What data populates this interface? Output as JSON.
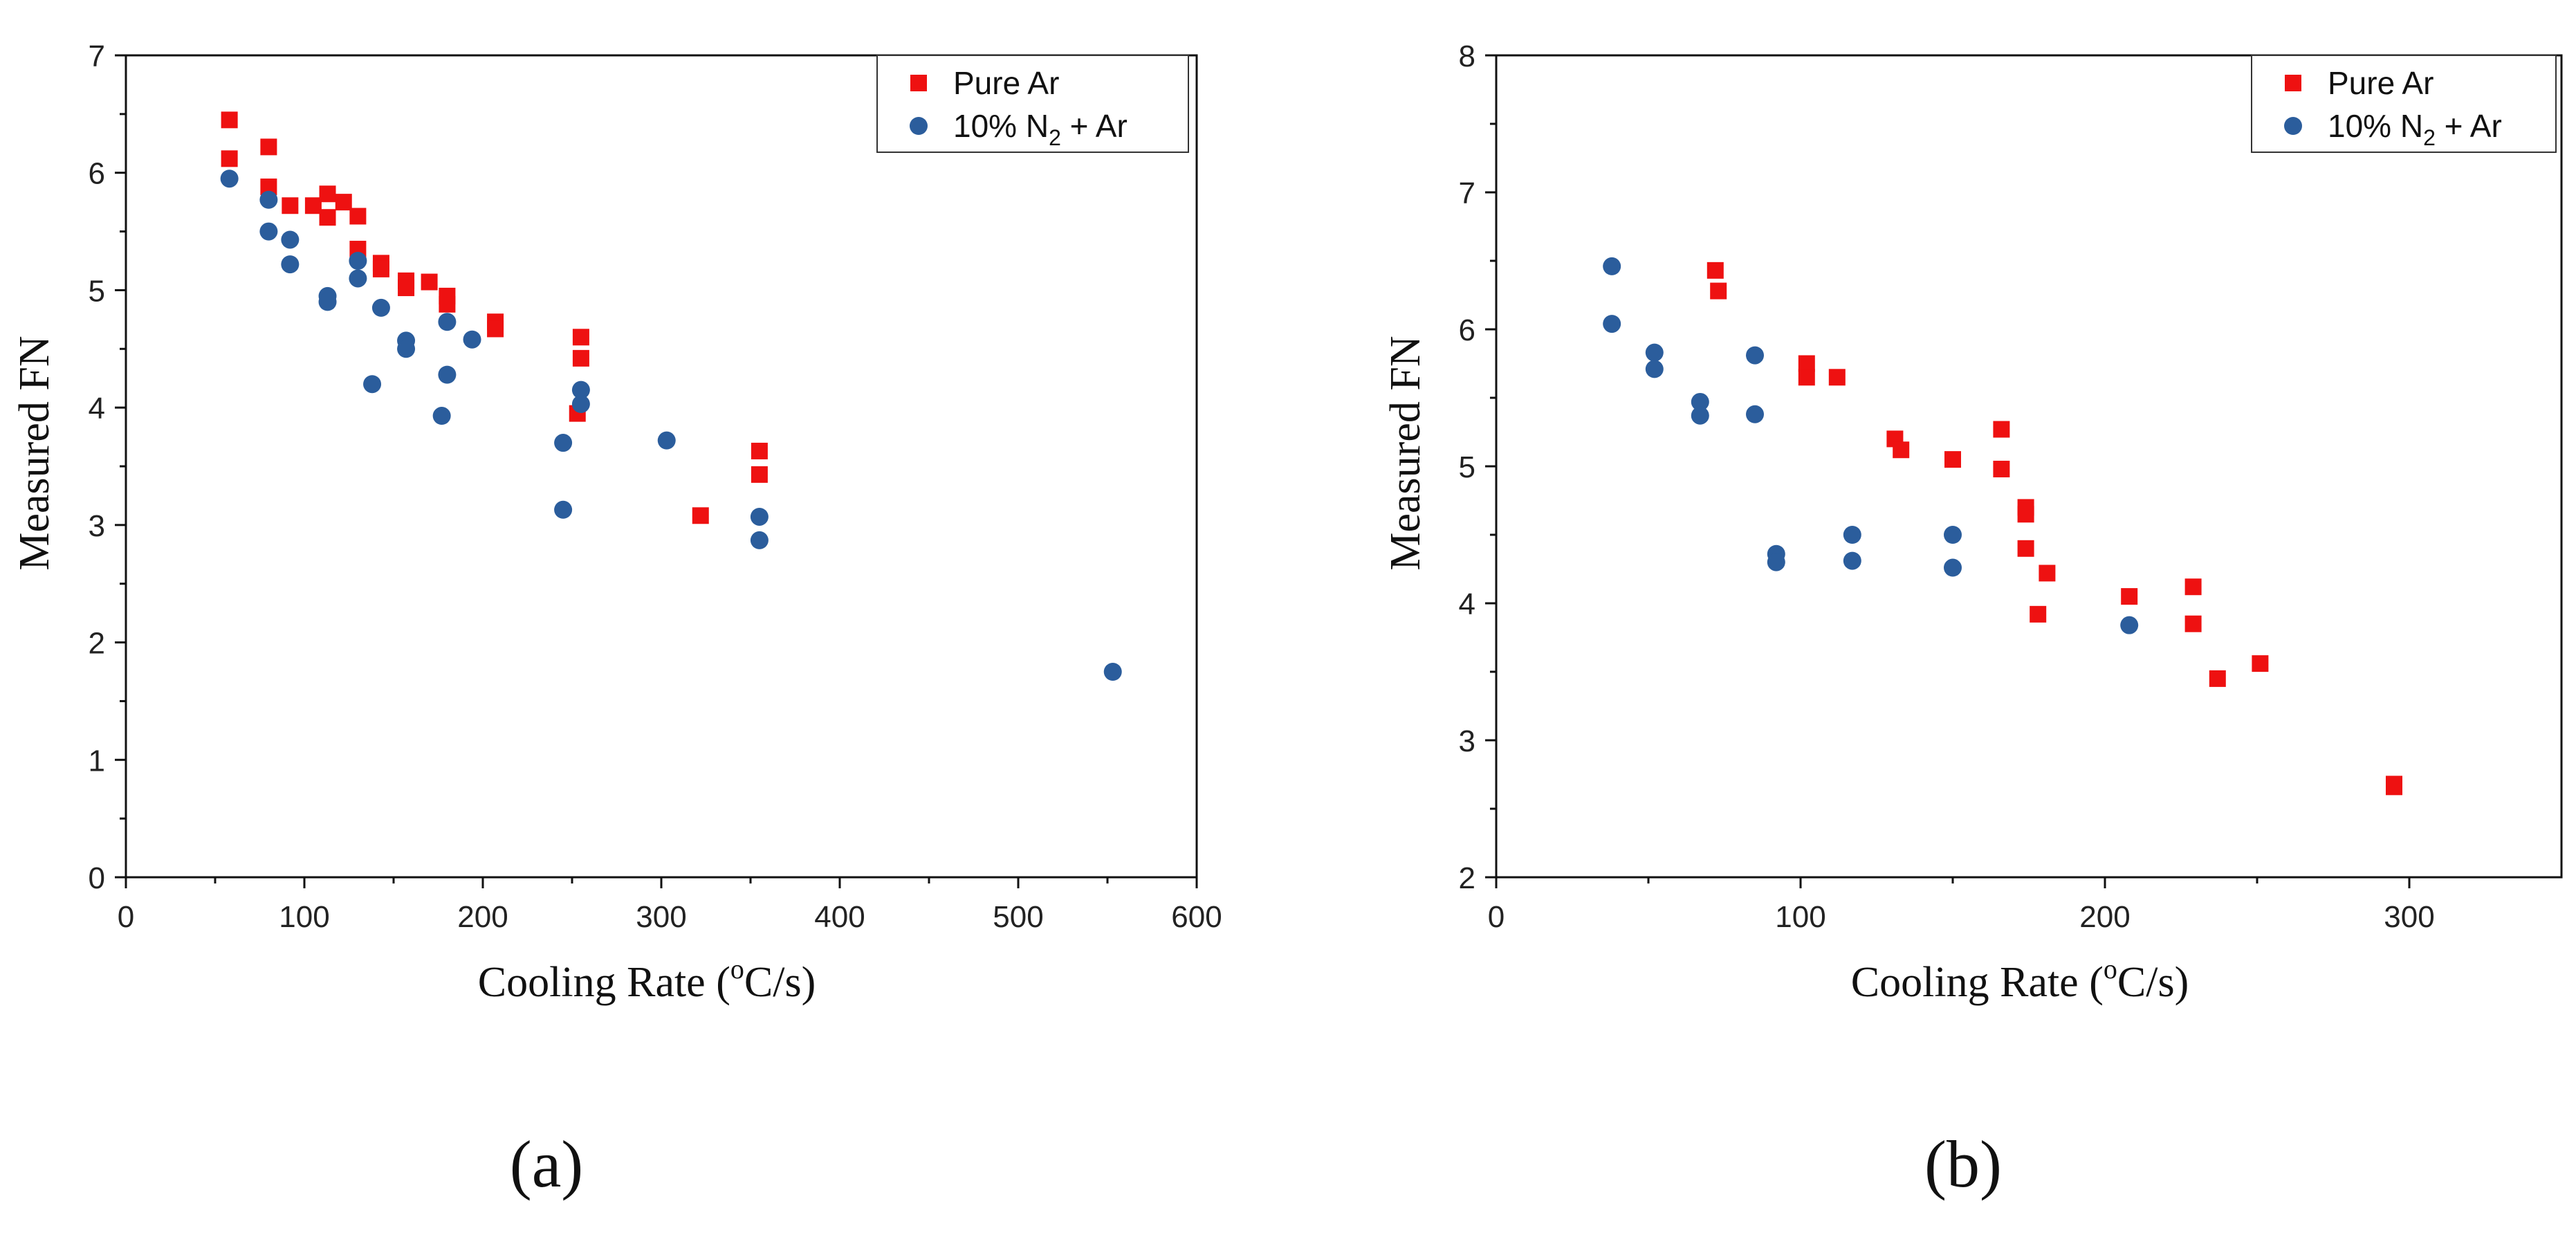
{
  "colors": {
    "pure_ar": "#ee1111",
    "n2_ar": "#2b5d9c"
  },
  "chart_data": [
    {
      "type": "scatter",
      "panel_label": "(a)",
      "xlabel": "Cooling Rate (",
      "xlabel_sup": "o",
      "xlabel_tail": "C/s)",
      "ylabel": "Measured FN",
      "xlim": [
        0,
        600
      ],
      "ylim": [
        0,
        7
      ],
      "xticks": [
        0,
        100,
        200,
        300,
        400,
        500,
        600
      ],
      "yticks": [
        0,
        1,
        2,
        3,
        4,
        5,
        6,
        7
      ],
      "legend_position": "top-right",
      "series": [
        {
          "name": "Pure Ar",
          "marker": "square",
          "points": [
            [
              58,
              6.45
            ],
            [
              58,
              6.12
            ],
            [
              80,
              6.22
            ],
            [
              80,
              5.88
            ],
            [
              92,
              5.72
            ],
            [
              105,
              5.72
            ],
            [
              113,
              5.82
            ],
            [
              113,
              5.62
            ],
            [
              122,
              5.75
            ],
            [
              130,
              5.63
            ],
            [
              130,
              5.35
            ],
            [
              143,
              5.23
            ],
            [
              143,
              5.18
            ],
            [
              157,
              5.08
            ],
            [
              157,
              5.02
            ],
            [
              170,
              5.07
            ],
            [
              180,
              4.95
            ],
            [
              180,
              4.88
            ],
            [
              207,
              4.73
            ],
            [
              207,
              4.67
            ],
            [
              255,
              4.6
            ],
            [
              255,
              4.42
            ],
            [
              253,
              3.95
            ],
            [
              322,
              3.08
            ],
            [
              355,
              3.63
            ],
            [
              355,
              3.43
            ]
          ]
        },
        {
          "name": "10% N",
          "name_sub": "2",
          "name_tail": " + Ar",
          "marker": "circle",
          "points": [
            [
              58,
              5.95
            ],
            [
              80,
              5.77
            ],
            [
              80,
              5.5
            ],
            [
              92,
              5.43
            ],
            [
              92,
              5.22
            ],
            [
              113,
              4.95
            ],
            [
              113,
              4.9
            ],
            [
              130,
              5.25
            ],
            [
              130,
              5.1
            ],
            [
              143,
              4.85
            ],
            [
              138,
              4.2
            ],
            [
              157,
              4.57
            ],
            [
              157,
              4.5
            ],
            [
              180,
              4.73
            ],
            [
              180,
              4.28
            ],
            [
              177,
              3.93
            ],
            [
              194,
              4.58
            ],
            [
              245,
              3.7
            ],
            [
              245,
              3.13
            ],
            [
              255,
              4.15
            ],
            [
              255,
              4.03
            ],
            [
              303,
              3.72
            ],
            [
              355,
              3.07
            ],
            [
              355,
              2.87
            ],
            [
              553,
              1.75
            ]
          ]
        }
      ]
    },
    {
      "type": "scatter",
      "panel_label": "(b)",
      "xlabel": "Cooling Rate (",
      "xlabel_sup": "o",
      "xlabel_tail": "C/s)",
      "ylabel": "Measured FN",
      "xlim": [
        0,
        350
      ],
      "ylim": [
        2,
        8
      ],
      "xticks": [
        0,
        100,
        200,
        300
      ],
      "yticks": [
        2,
        3,
        4,
        5,
        6,
        7,
        8
      ],
      "legend_position": "top-right",
      "series": [
        {
          "name": "Pure Ar",
          "marker": "square",
          "points": [
            [
              72,
              6.43
            ],
            [
              73,
              6.28
            ],
            [
              102,
              5.75
            ],
            [
              102,
              5.65
            ],
            [
              112,
              5.65
            ],
            [
              131,
              5.2
            ],
            [
              133,
              5.12
            ],
            [
              150,
              5.05
            ],
            [
              166,
              5.27
            ],
            [
              166,
              4.98
            ],
            [
              174,
              4.7
            ],
            [
              174,
              4.65
            ],
            [
              174,
              4.4
            ],
            [
              181,
              4.22
            ],
            [
              178,
              3.92
            ],
            [
              208,
              4.05
            ],
            [
              229,
              4.12
            ],
            [
              229,
              3.85
            ],
            [
              237,
              3.45
            ],
            [
              251,
              3.56
            ],
            [
              295,
              2.68
            ],
            [
              295,
              2.66
            ]
          ]
        },
        {
          "name": "10% N",
          "name_sub": "2",
          "name_tail": " + Ar",
          "marker": "circle",
          "points": [
            [
              38,
              6.46
            ],
            [
              38,
              6.04
            ],
            [
              52,
              5.83
            ],
            [
              52,
              5.71
            ],
            [
              67,
              5.47
            ],
            [
              67,
              5.37
            ],
            [
              85,
              5.81
            ],
            [
              85,
              5.38
            ],
            [
              92,
              4.36
            ],
            [
              92,
              4.3
            ],
            [
              117,
              4.5
            ],
            [
              117,
              4.31
            ],
            [
              150,
              4.5
            ],
            [
              150,
              4.26
            ],
            [
              208,
              3.84
            ]
          ]
        }
      ]
    }
  ]
}
